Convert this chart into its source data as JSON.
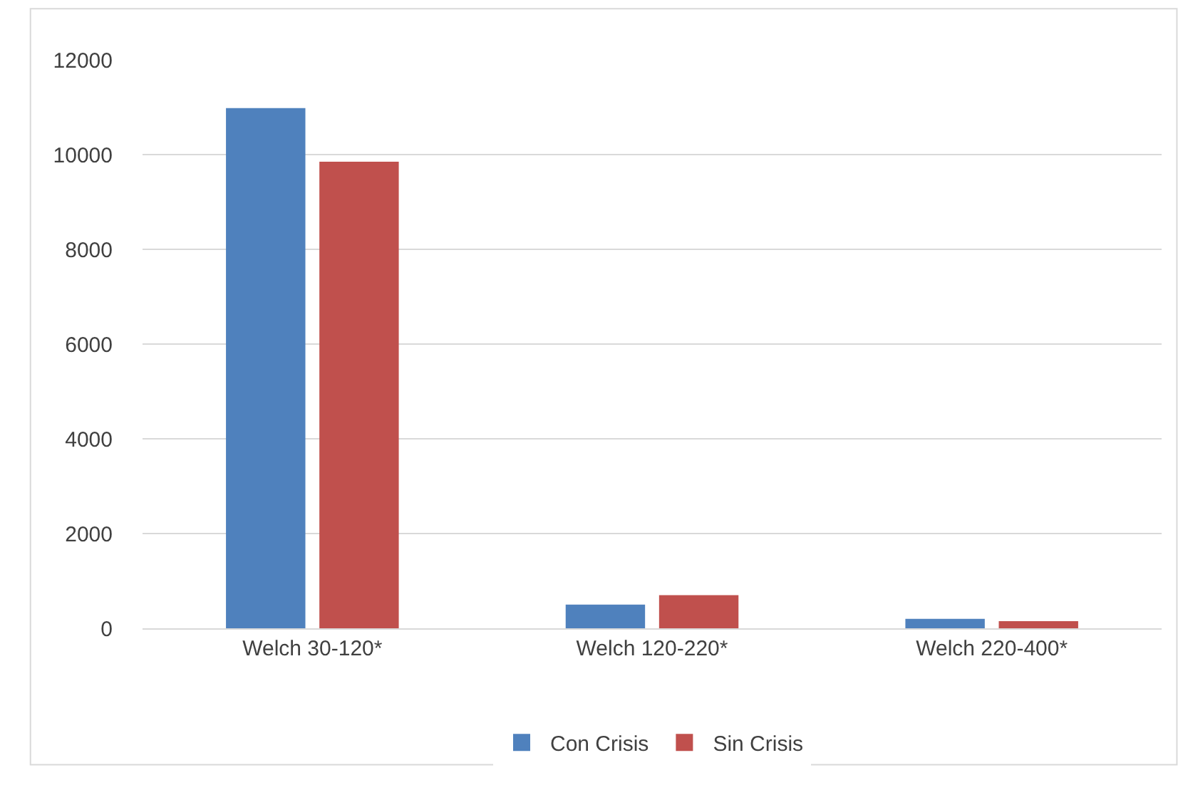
{
  "chart_data": {
    "type": "bar",
    "categories": [
      "Welch 30-120*",
      "Welch 120-220*",
      "Welch 220-400*"
    ],
    "series": [
      {
        "name": "Con Crisis",
        "color": "#4f81bd",
        "values": [
          10980,
          500,
          200
        ]
      },
      {
        "name": "Sin Crisis",
        "color": "#c0504d",
        "values": [
          9850,
          700,
          150
        ]
      }
    ],
    "ylim": [
      0,
      12000
    ],
    "yticks": [
      0,
      2000,
      4000,
      6000,
      8000,
      10000,
      12000
    ],
    "grid": "y",
    "legend": "bottom"
  }
}
